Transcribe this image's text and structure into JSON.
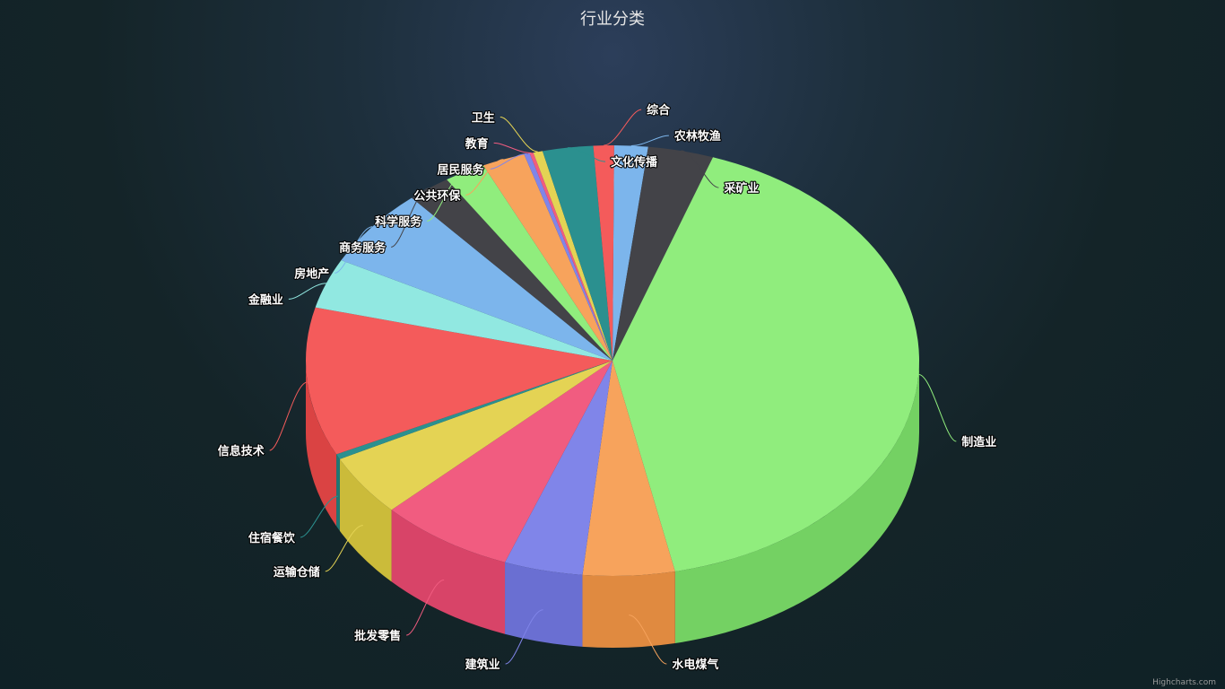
{
  "chart_data": {
    "type": "pie",
    "title": "行业分类",
    "credit": "Highcharts.com",
    "series": [
      {
        "name": "农林牧渔",
        "value": 1.8,
        "color": "#7cb5ec",
        "side": "#6395c4"
      },
      {
        "name": "采矿业",
        "value": 3.5,
        "color": "#434348",
        "side": "#333338"
      },
      {
        "name": "制造业",
        "value": 42.0,
        "color": "#90ed7d",
        "side": "#74d163"
      },
      {
        "name": "水电煤气",
        "value": 4.9,
        "color": "#f7a35c",
        "side": "#e08a40"
      },
      {
        "name": "建筑业",
        "value": 4.2,
        "color": "#8085e9",
        "side": "#6a6fd2"
      },
      {
        "name": "批发零售",
        "value": 7.2,
        "color": "#f15c80",
        "side": "#d84468"
      },
      {
        "name": "运输仓储",
        "value": 4.7,
        "color": "#e4d354",
        "side": "#cbbb3a"
      },
      {
        "name": "住宿餐饮",
        "value": 0.4,
        "color": "#2b908f",
        "side": "#1f7776"
      },
      {
        "name": "信息技术",
        "value": 11.3,
        "color": "#f45b5b",
        "side": "#da4343"
      },
      {
        "name": "金融业",
        "value": 3.8,
        "color": "#91e8e1",
        "side": "#73cdc6"
      },
      {
        "name": "房地产",
        "value": 6.0,
        "color": "#7cb5ec",
        "side": "#6395c4"
      },
      {
        "name": "商务服务",
        "value": 2.3,
        "color": "#434348",
        "side": "#333338"
      },
      {
        "name": "科学服务",
        "value": 2.2,
        "color": "#90ed7d",
        "side": "#74d163"
      },
      {
        "name": "公共环保",
        "value": 2.3,
        "color": "#f7a35c",
        "side": "#e08a40"
      },
      {
        "name": "居民服务",
        "value": 0.3,
        "color": "#8085e9",
        "side": "#6a6fd2"
      },
      {
        "name": "教育",
        "value": 0.2,
        "color": "#f15c80",
        "side": "#d84468"
      },
      {
        "name": "卫生",
        "value": 0.5,
        "color": "#e4d354",
        "side": "#cbbb3a"
      },
      {
        "name": "文化传播",
        "value": 2.7,
        "color": "#2b908f",
        "side": "#1f7776"
      },
      {
        "name": "综合",
        "value": 1.1,
        "color": "#f45b5b",
        "side": "#da4343"
      }
    ]
  }
}
